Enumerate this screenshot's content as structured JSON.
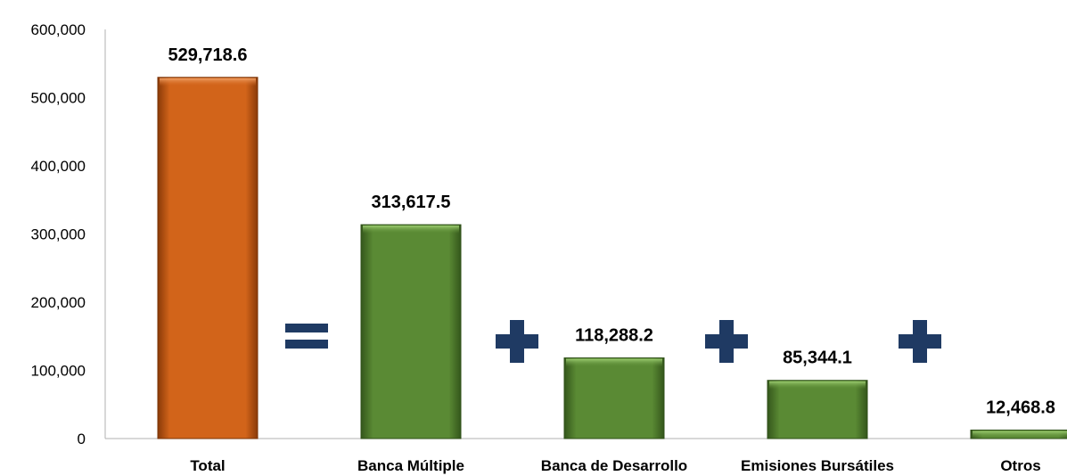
{
  "chart_data": {
    "type": "bar",
    "categories": [
      "Total",
      "Banca Múltiple",
      "Banca de Desarrollo",
      "Emisiones Bursátiles",
      "Otros"
    ],
    "values": [
      529718.6,
      313617.5,
      118288.2,
      85344.1,
      12468.8
    ],
    "data_labels": [
      "529,718.6",
      "313,617.5",
      "118,288.2",
      "85,344.1",
      "12,468.8"
    ],
    "ylim": [
      0,
      600000
    ],
    "y_ticks": [
      0,
      100000,
      200000,
      300000,
      400000,
      500000,
      600000
    ],
    "y_tick_labels": [
      "0",
      "100,000",
      "200,000",
      "300,000",
      "400,000",
      "500,000",
      "600,000"
    ],
    "grid": false,
    "legend": "none",
    "colors": {
      "total": "#d2641a",
      "component": "#5a8a34",
      "operator": "#1f3a63"
    },
    "operators": [
      "=",
      "+",
      "+",
      "+"
    ]
  }
}
